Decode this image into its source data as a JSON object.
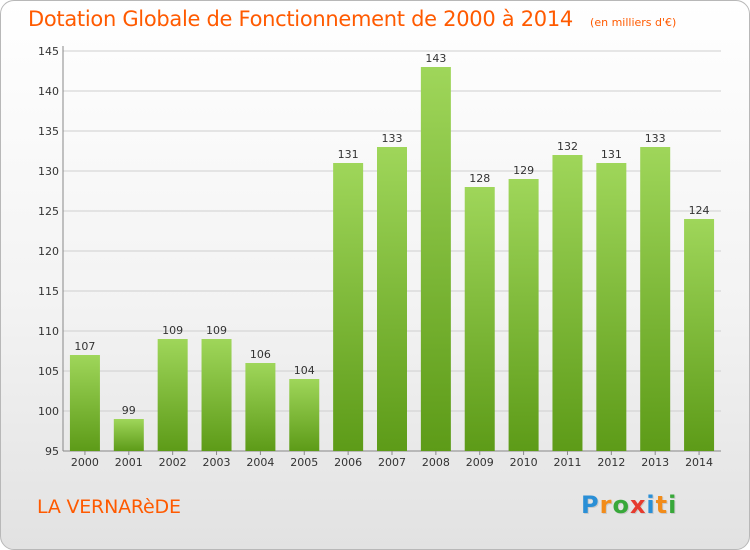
{
  "title": "Dotation Globale de Fonctionnement de 2000 à 2014",
  "unit_note": "(en milliers d'€)",
  "commune": "LA VERNARèDE",
  "logo": {
    "text": "Proxiti",
    "letter_colors": [
      "#2a8fd6",
      "#f28c1a",
      "#38a83a",
      "#e63b2e",
      "#2a8fd6",
      "#f28c1a",
      "#38a83a"
    ]
  },
  "colors": {
    "title": "#ff5a00",
    "bar_top": "#9fd65a",
    "bar_bottom": "#5d9b18",
    "grid": "#cfcfcf"
  },
  "chart_data": {
    "type": "bar",
    "title": "Dotation Globale de Fonctionnement de 2000 à 2014",
    "subtitle": "(en milliers d'€)",
    "categories": [
      "2000",
      "2001",
      "2002",
      "2003",
      "2004",
      "2005",
      "2006",
      "2007",
      "2008",
      "2009",
      "2010",
      "2011",
      "2012",
      "2013",
      "2014"
    ],
    "values": [
      107,
      99,
      109,
      109,
      106,
      104,
      131,
      133,
      143,
      128,
      129,
      132,
      131,
      133,
      124
    ],
    "ylim": [
      95,
      145
    ],
    "yticks": [
      95,
      100,
      105,
      110,
      115,
      120,
      125,
      130,
      135,
      140,
      145
    ],
    "grid": true,
    "data_labels": true
  }
}
